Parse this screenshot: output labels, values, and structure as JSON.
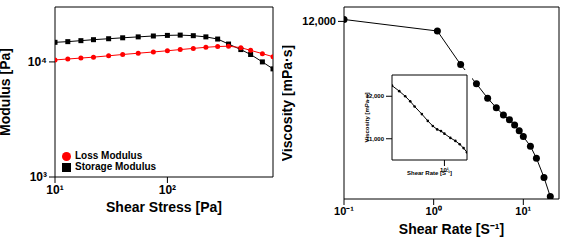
{
  "chart_data": [
    {
      "type": "line",
      "xlabel": "Shear Stress [Pa]",
      "ylabel": "Modulus [Pa]",
      "log": true,
      "legend": "lower left",
      "xlim": [
        10,
        870
      ],
      "xticks": [
        {
          "value": 10,
          "label": "10¹"
        },
        {
          "value": 100,
          "label": "10²"
        }
      ],
      "ylim": [
        1000,
        30000
      ],
      "yticks": [
        {
          "value": 1000,
          "label": "10³"
        },
        {
          "value": 10000,
          "label": "10⁴"
        }
      ],
      "x": [
        10,
        13,
        17,
        22,
        30,
        40,
        55,
        75,
        100,
        130,
        170,
        220,
        280,
        350,
        450,
        550,
        700,
        870
      ],
      "series": [
        {
          "name": "Storage Modulus",
          "color": "#000000",
          "marker": "square",
          "values": [
            14800,
            15000,
            15300,
            15600,
            15900,
            16200,
            16500,
            16800,
            17000,
            17100,
            16900,
            16500,
            15800,
            14300,
            12800,
            11600,
            10000,
            8700
          ]
        },
        {
          "name": "Loss Modulus",
          "color": "#ff0000",
          "marker": "circle",
          "values": [
            10400,
            10600,
            10800,
            11000,
            11300,
            11600,
            11900,
            12200,
            12500,
            12800,
            13100,
            13400,
            13600,
            13700,
            13300,
            12600,
            11800,
            11100
          ]
        }
      ]
    },
    {
      "type": "line",
      "xlabel": "Shear Rate [S⁻¹]",
      "ylabel": "Viscosity [mPa·s]",
      "log": "x",
      "xlim": [
        0.1,
        25
      ],
      "xticks": [
        {
          "value": 0.1,
          "label": "10⁻¹"
        },
        {
          "value": 1,
          "label": "10⁰"
        },
        {
          "value": 10,
          "label": "10¹"
        }
      ],
      "ylim": [
        8300,
        12300
      ],
      "yticks": [
        {
          "value": 12000,
          "label": "12,000"
        }
      ],
      "x": [
        0.1,
        1.1,
        2,
        3,
        4,
        5,
        6,
        7,
        8,
        9,
        10,
        12,
        14,
        17,
        20
      ],
      "values": [
        12040,
        11800,
        11100,
        10700,
        10400,
        10200,
        10050,
        9950,
        9840,
        9720,
        9600,
        9400,
        9150,
        8750,
        8350
      ],
      "color": "#000000",
      "marker": "circle"
    },
    {
      "type": "line",
      "xlabel": "Shear Rate [S⁻¹]",
      "ylabel": "Viscosity [mPa·s]",
      "log": "x",
      "xlim": [
        2,
        20
      ],
      "xticks": [
        {
          "value": 10,
          "label": "10¹"
        }
      ],
      "ylim": [
        10500,
        12500
      ],
      "yticks": [
        {
          "value": 11000,
          "label": "11,000"
        },
        {
          "value": 12000,
          "label": "12,000"
        }
      ],
      "x": [
        2,
        2.5,
        3,
        3.5,
        4,
        5,
        6,
        7,
        8,
        9,
        10,
        12,
        14,
        16,
        18,
        20
      ],
      "values": [
        12250,
        12120,
        12000,
        11880,
        11760,
        11580,
        11420,
        11300,
        11220,
        11180,
        11120,
        11020,
        10950,
        10870,
        10780,
        10680
      ],
      "color": "#000000",
      "marker": "circle"
    }
  ]
}
